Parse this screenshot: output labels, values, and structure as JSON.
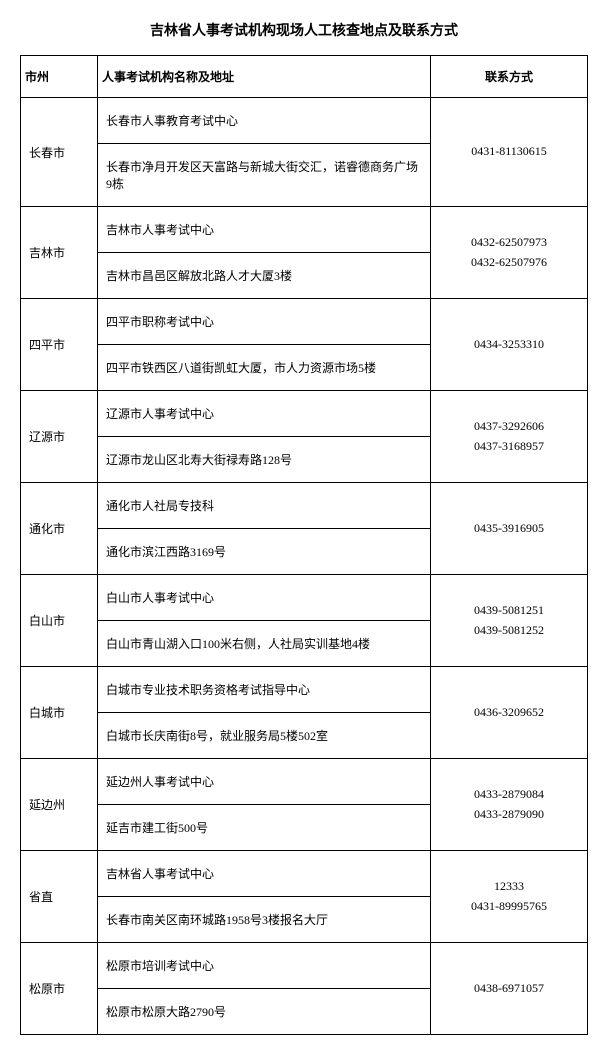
{
  "title": "吉林省人事考试机构现场人工核查地点及联系方式",
  "headers": {
    "city": "市州",
    "org": "人事考试机构名称及地址",
    "contact": "联系方式"
  },
  "rows": [
    {
      "city": "长春市",
      "org1": "长春市人事教育考试中心",
      "org2": "长春市净月开发区天富路与新城大街交汇，诺睿德商务广场9栋",
      "contacts": [
        "0431-81130615"
      ]
    },
    {
      "city": "吉林市",
      "org1": "吉林市人事考试中心",
      "org2": "吉林市昌邑区解放北路人才大厦3楼",
      "contacts": [
        "0432-62507973",
        "0432-62507976"
      ]
    },
    {
      "city": "四平市",
      "org1": "四平市职称考试中心",
      "org2": "四平市铁西区八道街凯虹大厦，市人力资源市场5楼",
      "contacts": [
        "0434-3253310"
      ]
    },
    {
      "city": "辽源市",
      "org1": "辽源市人事考试中心",
      "org2": "辽源市龙山区北寿大街禄寿路128号",
      "contacts": [
        "0437-3292606",
        "0437-3168957"
      ]
    },
    {
      "city": "通化市",
      "org1": "通化市人社局专技科",
      "org2": "通化市滨江西路3169号",
      "contacts": [
        "0435-3916905"
      ]
    },
    {
      "city": "白山市",
      "org1": "白山市人事考试中心",
      "org2": "白山市青山湖入口100米右侧，人社局实训基地4楼",
      "contacts": [
        "0439-5081251",
        "0439-5081252"
      ]
    },
    {
      "city": "白城市",
      "org1": "白城市专业技术职务资格考试指导中心",
      "org2": "白城市长庆南街8号，就业服务局5楼502室",
      "contacts": [
        "0436-3209652"
      ]
    },
    {
      "city": "延边州",
      "org1": "延边州人事考试中心",
      "org2": "延吉市建工街500号",
      "contacts": [
        "0433-2879084",
        "0433-2879090"
      ]
    },
    {
      "city": "省直",
      "org1": "吉林省人事考试中心",
      "org2": "长春市南关区南环城路1958号3楼报名大厅",
      "contacts": [
        "12333",
        "0431-89995765"
      ]
    },
    {
      "city": "松原市",
      "org1": "松原市培训考试中心",
      "org2": "松原市松原大路2790号",
      "contacts": [
        "0438-6971057"
      ]
    }
  ]
}
